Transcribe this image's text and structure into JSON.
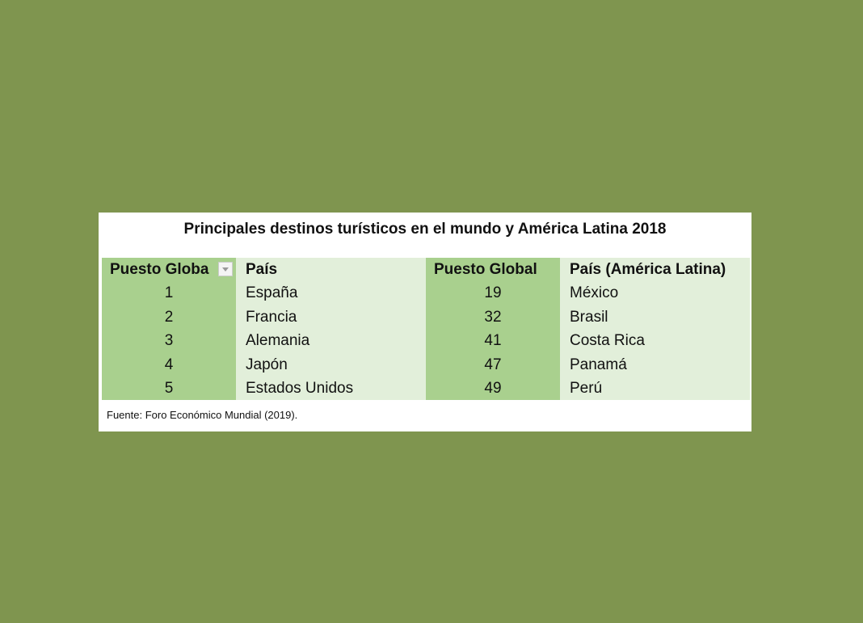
{
  "title": "Principales destinos turísticos en el mundo y América Latina 2018",
  "table": {
    "headers": [
      "Puesto Globa",
      "País",
      "Puesto Global",
      "País (América Latina)"
    ],
    "rows": [
      [
        1,
        "España",
        19,
        "México"
      ],
      [
        2,
        "Francia",
        32,
        "Brasil"
      ],
      [
        3,
        "Alemania",
        41,
        "Costa Rica"
      ],
      [
        4,
        "Japón",
        47,
        "Panamá"
      ],
      [
        5,
        "Estados Unidos",
        49,
        "Perú"
      ]
    ]
  },
  "source": "Fuente: Foro Económico Mundial (2019)."
}
